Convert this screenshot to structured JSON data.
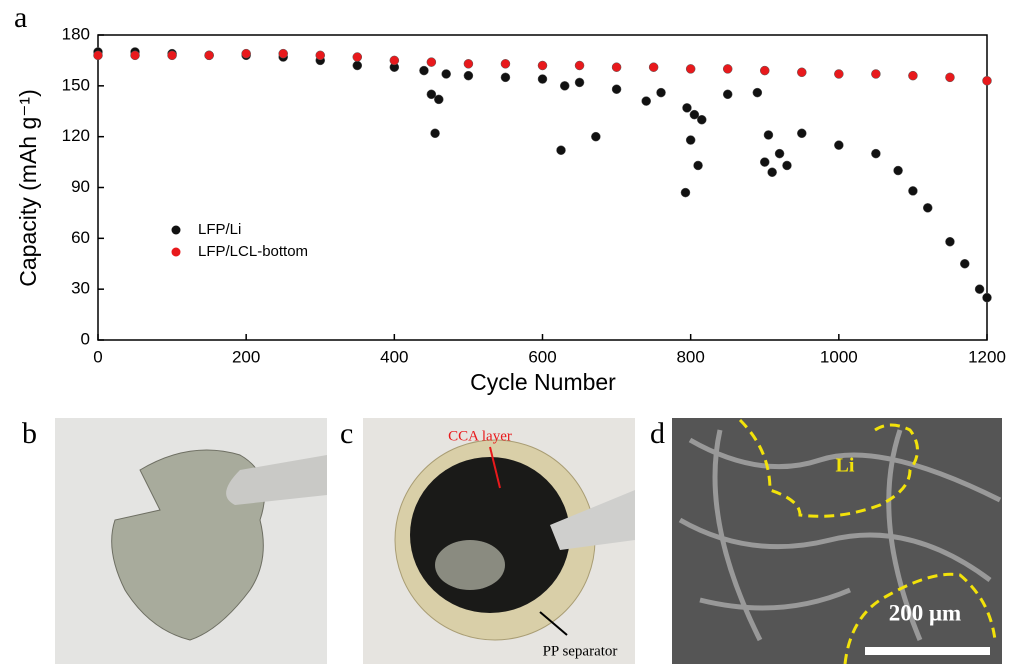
{
  "chart_data": {
    "type": "scatter",
    "panel_label": "a",
    "x_label": "Cycle Number",
    "y_label": "Capacity (mAh g⁻¹)",
    "xlim": [
      0,
      1200
    ],
    "xticks": [
      0,
      200,
      400,
      600,
      800,
      1000,
      1200
    ],
    "ylim": [
      0,
      180
    ],
    "yticks": [
      0,
      30,
      60,
      90,
      120,
      150,
      180
    ],
    "legend": "lower left",
    "series": [
      {
        "name": "LFP/Li",
        "color": "#111111",
        "x": [
          0,
          50,
          100,
          150,
          200,
          250,
          300,
          350,
          400,
          440,
          450,
          455,
          460,
          470,
          500,
          550,
          600,
          625,
          630,
          650,
          672,
          700,
          740,
          760,
          793,
          795,
          800,
          805,
          810,
          815,
          850,
          890,
          900,
          905,
          910,
          920,
          930,
          950,
          1000,
          1050,
          1080,
          1100,
          1120,
          1150,
          1170,
          1190,
          1200
        ],
        "values": [
          170,
          170,
          169,
          168,
          168,
          167,
          165,
          162,
          161,
          159,
          145,
          122,
          142,
          157,
          156,
          155,
          154,
          112,
          150,
          152,
          120,
          148,
          141,
          146,
          87,
          137,
          118,
          133,
          103,
          130,
          145,
          146,
          105,
          121,
          99,
          110,
          103,
          122,
          115,
          110,
          100,
          88,
          78,
          58,
          45,
          30,
          25
        ]
      },
      {
        "name": "LFP/LCL-bottom",
        "color": "#e8191c",
        "x": [
          0,
          50,
          100,
          150,
          200,
          250,
          300,
          350,
          400,
          450,
          500,
          550,
          600,
          650,
          700,
          750,
          800,
          850,
          900,
          950,
          1000,
          1050,
          1100,
          1150,
          1200
        ],
        "values": [
          168,
          168,
          168,
          168,
          169,
          169,
          168,
          167,
          165,
          164,
          163,
          163,
          162,
          162,
          161,
          161,
          160,
          160,
          159,
          158,
          157,
          157,
          156,
          155,
          153
        ]
      }
    ]
  },
  "panels": {
    "b": {
      "label": "b"
    },
    "c": {
      "label": "c",
      "annotation_top": "CCA layer",
      "annotation_bottom": "PP separator"
    },
    "d": {
      "label": "d",
      "region_label": "Li",
      "scale_bar": "200 μm"
    }
  }
}
